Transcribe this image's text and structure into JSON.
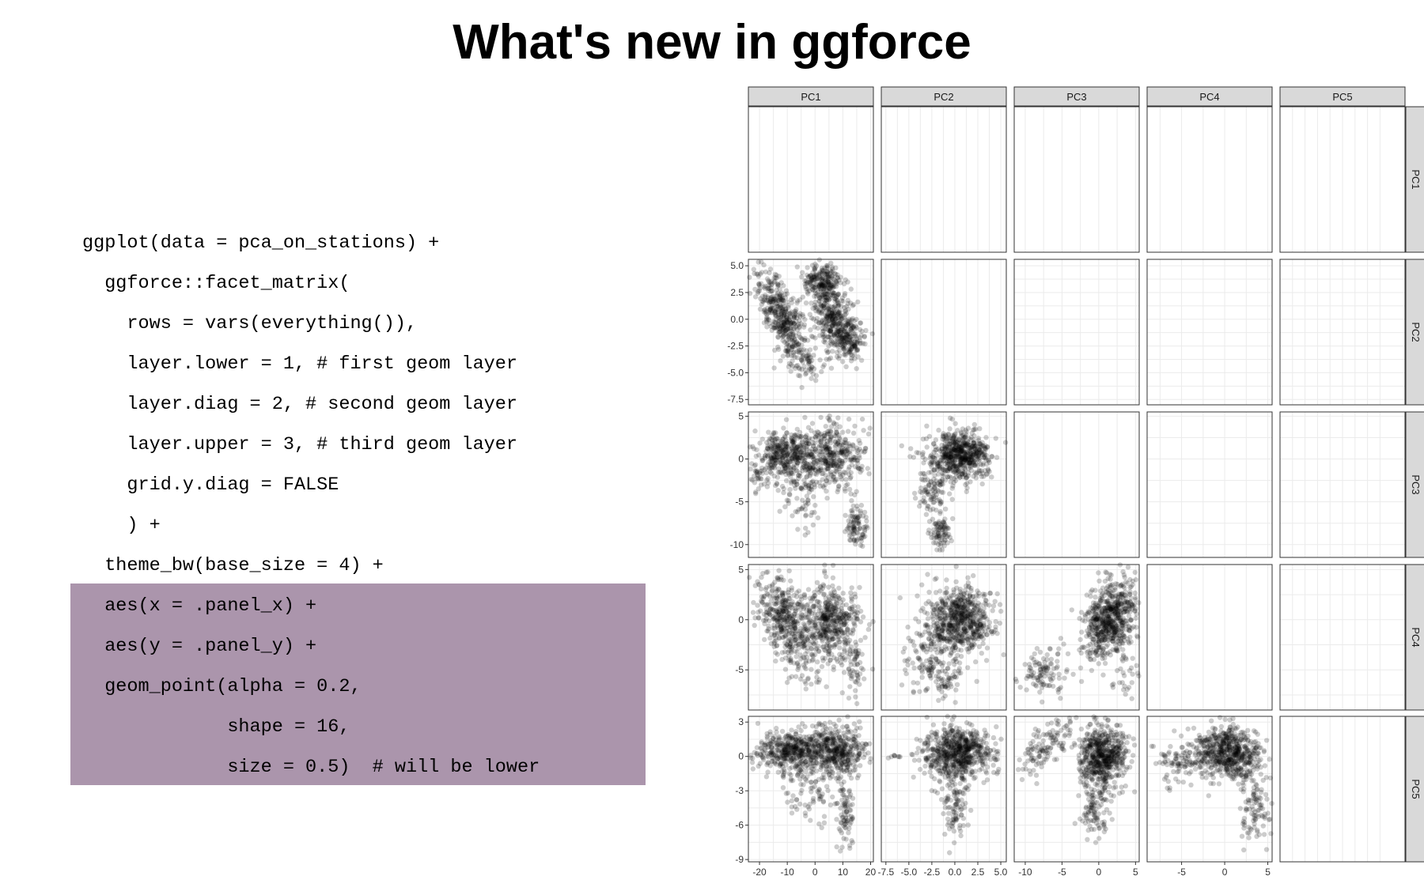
{
  "slide": {
    "title": "What's new in ggforce"
  },
  "code_lines": [
    "ggplot(data = pca_on_stations) +",
    "  ggforce::facet_matrix(",
    "    rows = vars(everything()),",
    "    layer.lower = 1, # first geom layer",
    "    layer.diag = 2, # second geom layer",
    "    layer.upper = 3, # third geom layer",
    "    grid.y.diag = FALSE",
    "    ) +",
    "  theme_bw(base_size = 4) +",
    "  aes(x = .panel_x) +",
    "  aes(y = .panel_y) +",
    "  geom_point(alpha = 0.2,",
    "             shape = 16,",
    "             size = 0.5)  # will be lower"
  ],
  "highlight_color": "#ab95ac",
  "chart_data": {
    "type": "scatter",
    "layout": "facet_matrix",
    "variables": [
      "PC1",
      "PC2",
      "PC3",
      "PC4",
      "PC5"
    ],
    "x_ticks": {
      "PC1": [
        "-20",
        "-10",
        "0",
        "10",
        "20"
      ],
      "PC2": [
        "-7.5",
        "-5.0",
        "-2.5",
        "0.0",
        "2.5",
        "5.0"
      ],
      "PC3": [
        "-10",
        "-5",
        "0",
        "5"
      ],
      "PC4": [
        "-5",
        "0",
        "5"
      ],
      "PC5": []
    },
    "x_tick_values": {
      "PC1": [
        -20,
        -10,
        0,
        10,
        20
      ],
      "PC2": [
        -7.5,
        -5,
        -2.5,
        0,
        2.5,
        5
      ],
      "PC3": [
        -10,
        -5,
        0,
        5
      ],
      "PC4": [
        -5,
        0,
        5
      ],
      "PC5": []
    },
    "y_ticks": {
      "PC1": [],
      "PC2": [
        "5.0",
        "2.5",
        "0.0",
        "-2.5",
        "-5.0",
        "-7.5"
      ],
      "PC3": [
        "5",
        "0",
        "-5",
        "-10"
      ],
      "PC4": [
        "5",
        "0",
        "-5"
      ],
      "PC5": [
        "3",
        "0",
        "-3",
        "-6",
        "-9"
      ]
    },
    "y_tick_values": {
      "PC1": [],
      "PC2": [
        5,
        2.5,
        0,
        -2.5,
        -5,
        -7.5
      ],
      "PC3": [
        5,
        0,
        -5,
        -10
      ],
      "PC4": [
        5,
        0,
        -5
      ],
      "PC5": [
        3,
        0,
        -3,
        -6,
        -9
      ]
    },
    "ranges": {
      "PC1": [
        -24,
        21
      ],
      "PC2": [
        -8,
        5.6
      ],
      "PC3": [
        -11.5,
        5.5
      ],
      "PC4": [
        -9,
        5.5
      ],
      "PC5": [
        -9.2,
        3.5
      ]
    },
    "point_alpha": 0.2,
    "point_color": "#000000",
    "grid": true,
    "panels_with_points": [
      {
        "x": "PC1",
        "y": "PC2"
      },
      {
        "x": "PC1",
        "y": "PC3"
      },
      {
        "x": "PC2",
        "y": "PC3"
      },
      {
        "x": "PC1",
        "y": "PC4"
      },
      {
        "x": "PC2",
        "y": "PC4"
      },
      {
        "x": "PC3",
        "y": "PC4"
      },
      {
        "x": "PC1",
        "y": "PC5"
      },
      {
        "x": "PC2",
        "y": "PC5"
      },
      {
        "x": "PC3",
        "y": "PC5"
      },
      {
        "x": "PC4",
        "y": "PC5"
      }
    ]
  }
}
